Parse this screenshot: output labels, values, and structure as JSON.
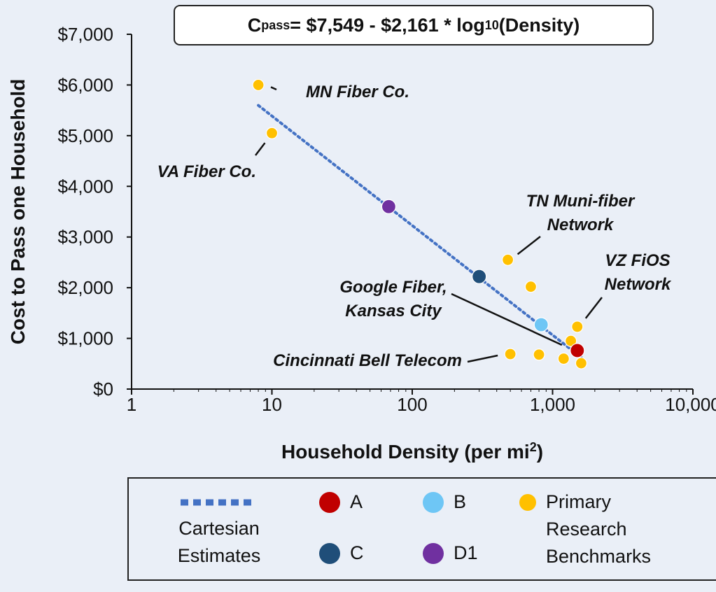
{
  "chart_data": {
    "type": "scatter",
    "title": "",
    "equation": {
      "prefix": "C",
      "subscript": "pass",
      "middle": " = $7,549 - $2,161 * log",
      "log_base": "10",
      "suffix": "(Density)"
    },
    "xlabel": "Household Density (per mi",
    "xlabel_sup": "2",
    "xlabel_end": ")",
    "ylabel": "Cost to Pass one Household",
    "x_scale": "log",
    "xlim": [
      1,
      10000
    ],
    "ylim": [
      0,
      7000
    ],
    "x_ticks": [
      {
        "value": 1,
        "label": "1"
      },
      {
        "value": 10,
        "label": "10"
      },
      {
        "value": 100,
        "label": "100"
      },
      {
        "value": 1000,
        "label": "1,000"
      },
      {
        "value": 10000,
        "label": "10,000"
      }
    ],
    "y_ticks": [
      {
        "value": 0,
        "label": "$0"
      },
      {
        "value": 1000,
        "label": "$1,000"
      },
      {
        "value": 2000,
        "label": "$2,000"
      },
      {
        "value": 3000,
        "label": "$3,000"
      },
      {
        "value": 4000,
        "label": "$4,000"
      },
      {
        "value": 5000,
        "label": "$5,000"
      },
      {
        "value": 6000,
        "label": "$6,000"
      },
      {
        "value": 7000,
        "label": "$7,000"
      }
    ],
    "trendline": {
      "name": "Cartesian Estimates",
      "intercept": 7549,
      "slope": -2161,
      "x_range": [
        8,
        1600
      ],
      "color": "#4472c4"
    },
    "series": [
      {
        "name": "Primary Research Benchmarks",
        "color": "#ffc000",
        "points": [
          {
            "x": 8,
            "y": 6000
          },
          {
            "x": 10,
            "y": 5050
          },
          {
            "x": 480,
            "y": 2550
          },
          {
            "x": 700,
            "y": 2020
          },
          {
            "x": 1500,
            "y": 1230
          },
          {
            "x": 1350,
            "y": 950
          },
          {
            "x": 500,
            "y": 690
          },
          {
            "x": 800,
            "y": 680
          },
          {
            "x": 1200,
            "y": 600
          },
          {
            "x": 1600,
            "y": 510
          }
        ]
      },
      {
        "name": "A",
        "color": "#c00000",
        "points": [
          {
            "x": 1500,
            "y": 760
          }
        ]
      },
      {
        "name": "B",
        "color": "#6ec6f5",
        "points": [
          {
            "x": 830,
            "y": 1270
          }
        ]
      },
      {
        "name": "C",
        "color": "#1f4e79",
        "points": [
          {
            "x": 300,
            "y": 2220
          }
        ]
      },
      {
        "name": "D1",
        "color": "#7030a0",
        "points": [
          {
            "x": 68,
            "y": 3600
          }
        ]
      }
    ],
    "annotations": [
      {
        "lines": [
          "MN Fiber Co."
        ],
        "point": [
          8,
          6000
        ],
        "align": "start"
      },
      {
        "lines": [
          "VA Fiber Co."
        ],
        "point": [
          10,
          5050
        ],
        "align": "end"
      },
      {
        "lines": [
          "TN Muni-fiber",
          "Network"
        ],
        "point": [
          480,
          2550
        ],
        "align": "middle"
      },
      {
        "lines": [
          "VZ FiOS",
          "Network"
        ],
        "point": [
          1500,
          1230
        ],
        "align": "middle"
      },
      {
        "lines": [
          "Google Fiber,",
          "Kansas City"
        ],
        "point": [
          1500,
          760
        ],
        "align": "middle"
      },
      {
        "lines": [
          "Cincinnati Bell Telecom"
        ],
        "point": [
          500,
          690
        ],
        "align": "end"
      }
    ],
    "legend": {
      "position": "bottom",
      "trend_line1": "Cartesian",
      "trend_line2": "Estimates",
      "a": "A",
      "b": "B",
      "c": "C",
      "d1": "D1",
      "bench_line1": "Primary",
      "bench_line2": "Research",
      "bench_line3": "Benchmarks"
    },
    "colors": {
      "axis": "#111111",
      "background": "#eaeff7",
      "benchmark": "#ffc000",
      "a": "#c00000",
      "b": "#6ec6f5",
      "c": "#1f4e79",
      "d1": "#7030a0",
      "trend": "#4472c4"
    }
  }
}
